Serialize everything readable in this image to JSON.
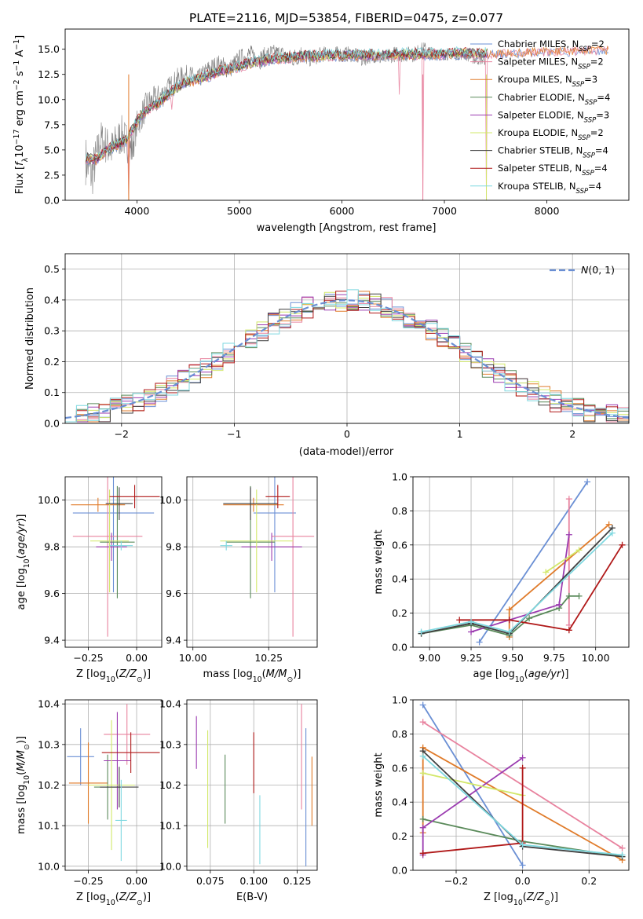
{
  "chart_data": [
    {
      "id": "spectrum",
      "type": "line",
      "title": "PLATE=2116, MJD=53854, FIBERID=0475, z=0.077",
      "xlabel": "wavelength [Angstrom, rest frame]",
      "ylabel": "Flux [f_λ 10^-17 erg cm^-2 s^-1 A^-1]",
      "xlim": [
        3300,
        8800
      ],
      "ylim": [
        0,
        17
      ],
      "xticks": [
        4000,
        5000,
        6000,
        7000,
        8000
      ],
      "yticks": [
        0.0,
        2.5,
        5.0,
        7.5,
        10.0,
        12.5,
        15.0
      ],
      "grid": false,
      "legend_position": "right",
      "data_color": "#808080",
      "data_x": [
        3500,
        3560,
        3650,
        3750,
        3850,
        3950,
        4000,
        4100,
        4200,
        4300,
        4400,
        4500,
        4600,
        4700,
        4800,
        4900,
        5000,
        5100,
        5200,
        5300,
        5400,
        5500,
        5600,
        5700,
        5800,
        5900,
        6000,
        6100,
        6200,
        6300,
        6400,
        6500,
        6600,
        6700,
        6800,
        6900,
        7000,
        7100,
        7200,
        7300,
        7400
      ],
      "data_y": [
        4.0,
        2.5,
        6.0,
        5.0,
        6.5,
        5.0,
        7.5,
        9.5,
        10.0,
        11.0,
        12.0,
        12.5,
        12.0,
        13.0,
        13.5,
        13.0,
        14.0,
        14.5,
        14.0,
        14.5,
        14.5,
        14.0,
        14.5,
        14.0,
        14.5,
        14.5,
        14.5,
        14.5,
        14.0,
        14.5,
        14.0,
        14.5,
        14.5,
        14.5,
        15.0,
        14.5,
        14.5,
        14.5,
        14.5,
        14.0,
        14.0
      ],
      "data_noise": [
        2.5,
        2.5,
        2.0,
        2.0,
        2.0,
        2.0,
        1.5,
        1.5,
        1.5,
        1.2,
        1.2,
        1.0,
        1.0,
        1.0,
        1.0,
        1.0,
        1.0,
        1.0,
        1.0,
        1.0,
        1.0,
        1.0,
        1.0,
        0.8,
        0.8,
        0.8,
        0.8,
        0.8,
        0.8,
        0.8,
        0.8,
        0.8,
        0.8,
        0.8,
        0.8,
        0.6,
        0.6,
        0.6,
        0.6,
        0.6,
        0.6
      ],
      "model_x": [
        3500,
        3600,
        3700,
        3800,
        3900,
        4000,
        4100,
        4200,
        4300,
        4400,
        4500,
        4600,
        4700,
        4800,
        4900,
        5000,
        5100,
        5200,
        5300,
        5400,
        5500,
        5600,
        5700,
        5800,
        5900,
        6000,
        6100,
        6200,
        6300,
        6400,
        6500,
        6600,
        6700,
        6800,
        6900,
        7000,
        7100,
        7200,
        7300,
        7400,
        7600,
        7800,
        8000,
        8200,
        8400,
        8600
      ],
      "model_y": [
        4.2,
        4.0,
        5.0,
        5.5,
        6.0,
        7.8,
        9.0,
        9.6,
        10.5,
        11.2,
        11.8,
        12.0,
        12.4,
        12.8,
        13.0,
        13.3,
        13.6,
        13.8,
        14.0,
        14.1,
        14.2,
        14.3,
        14.3,
        14.3,
        14.4,
        14.4,
        14.4,
        14.4,
        14.4,
        14.4,
        14.5,
        14.5,
        14.5,
        14.5,
        14.5,
        14.5,
        14.6,
        14.6,
        14.6,
        14.6,
        14.7,
        14.8,
        14.9,
        14.9,
        15.0,
        15.0
      ],
      "dips": [
        [
          3920,
          0.0
        ],
        [
          4340,
          9.0
        ],
        [
          6560,
          10.5
        ],
        [
          6790,
          0.0
        ],
        [
          7410,
          0.0
        ]
      ],
      "series": [
        {
          "name": "Chabrier MILES, N_SSP=2",
          "color": "#6a8fd4"
        },
        {
          "name": "Salpeter MILES, N_SSP=2",
          "color": "#e8829e"
        },
        {
          "name": "Kroupa MILES, N_SSP=3",
          "color": "#e07b2a"
        },
        {
          "name": "Chabrier ELODIE, N_SSP=4",
          "color": "#5a8a5a"
        },
        {
          "name": "Salpeter ELODIE, N_SSP=3",
          "color": "#9b3bb0"
        },
        {
          "name": "Kroupa ELODIE, N_SSP=2",
          "color": "#d2e86a"
        },
        {
          "name": "Chabrier STELIB, N_SSP=4",
          "color": "#404040"
        },
        {
          "name": "Salpeter STELIB, N_SSP=4",
          "color": "#b01818"
        },
        {
          "name": "Kroupa STELIB, N_SSP=4",
          "color": "#7fd8e0"
        }
      ]
    },
    {
      "id": "residuals",
      "type": "histogram",
      "xlabel": "(data-model)/error",
      "ylabel": "Normed distribution",
      "xlim": [
        -2.5,
        2.5
      ],
      "ylim": [
        0,
        0.55
      ],
      "xticks": [
        -2,
        -1,
        0,
        1,
        2
      ],
      "yticks": [
        0.0,
        0.1,
        0.2,
        0.3,
        0.4,
        0.5
      ],
      "grid": true,
      "legend_position": "upper right",
      "gaussian": {
        "name": "N(0,1)",
        "color": "#6a8fd4",
        "style": "dashed"
      },
      "bin_width": 0.1,
      "bin_start": -2.5
    },
    {
      "id": "age_vs_z",
      "type": "errorbar",
      "xlabel": "Z [log10(Z/Z_sun)]",
      "ylabel": "age [log10(age/yr)]",
      "xlim": [
        -0.37,
        0.13
      ],
      "ylim": [
        9.37,
        10.1
      ],
      "xticks": [
        -0.25,
        0.0
      ],
      "xticklabels": [
        "−0.25",
        "0.00"
      ],
      "yticks": [
        9.4,
        9.6,
        9.8,
        10.0
      ],
      "yticklabels": [
        "9.4",
        "9.6",
        "9.8",
        "10.0"
      ],
      "grid": true,
      "points": [
        {
          "color": "#6a8fd4",
          "x": -0.12,
          "xerr": 0.21,
          "y": 9.945,
          "yerr": 0.34
        },
        {
          "color": "#e8829e",
          "x": -0.15,
          "xerr": 0.18,
          "y": 9.845,
          "yerr": 0.43
        },
        {
          "color": "#e07b2a",
          "x": -0.2,
          "xerr": 0.14,
          "y": 9.98,
          "yerr": 0.03
        },
        {
          "color": "#5a8a5a",
          "x": -0.1,
          "xerr": 0.09,
          "y": 9.82,
          "yerr": 0.24
        },
        {
          "color": "#9b3bb0",
          "x": -0.13,
          "xerr": 0.08,
          "y": 9.8,
          "yerr": 0.06
        },
        {
          "color": "#d2e86a",
          "x": -0.14,
          "xerr": 0.1,
          "y": 9.825,
          "yerr": 0.22
        },
        {
          "color": "#404040",
          "x": -0.09,
          "xerr": 0.07,
          "y": 9.985,
          "yerr": 0.07
        },
        {
          "color": "#b01818",
          "x": -0.01,
          "xerr": 0.13,
          "y": 10.015,
          "yerr": 0.05
        },
        {
          "color": "#7fd8e0",
          "x": -0.08,
          "xerr": 0.06,
          "y": 9.805,
          "yerr": 0.02
        }
      ]
    },
    {
      "id": "age_vs_mass",
      "type": "errorbar",
      "xlabel": "mass [log10(M/M_sun)]",
      "ylabel": "",
      "xlim": [
        9.98,
        10.41
      ],
      "ylim": [
        9.37,
        10.1
      ],
      "xticks": [
        10.0,
        10.25
      ],
      "xticklabels": [
        "10.00",
        "10.25"
      ],
      "yticks": [
        9.4,
        9.6,
        9.8,
        10.0
      ],
      "yticklabels": [
        "9.4",
        "9.6",
        "9.8",
        "10.0"
      ],
      "grid": true,
      "points": [
        {
          "color": "#6a8fd4",
          "x": 10.27,
          "xerr": 0.07,
          "y": 9.945,
          "yerr": 0.34
        },
        {
          "color": "#e8829e",
          "x": 10.33,
          "xerr": 0.07,
          "y": 9.845,
          "yerr": 0.43
        },
        {
          "color": "#e07b2a",
          "x": 10.2,
          "xerr": 0.1,
          "y": 9.98,
          "yerr": 0.03
        },
        {
          "color": "#5a8a5a",
          "x": 10.19,
          "xerr": 0.08,
          "y": 9.82,
          "yerr": 0.24
        },
        {
          "color": "#9b3bb0",
          "x": 10.26,
          "xerr": 0.1,
          "y": 9.8,
          "yerr": 0.06
        },
        {
          "color": "#d2e86a",
          "x": 10.21,
          "xerr": 0.12,
          "y": 9.825,
          "yerr": 0.22
        },
        {
          "color": "#404040",
          "x": 10.19,
          "xerr": 0.09,
          "y": 9.985,
          "yerr": 0.07
        },
        {
          "color": "#b01818",
          "x": 10.28,
          "xerr": 0.04,
          "y": 10.015,
          "yerr": 0.05
        },
        {
          "color": "#7fd8e0",
          "x": 10.11,
          "xerr": 0.02,
          "y": 9.805,
          "yerr": 0.02
        }
      ]
    },
    {
      "id": "weight_vs_age",
      "type": "line",
      "xlabel": "age [log10(age/yr)]",
      "ylabel": "mass weight",
      "xlim": [
        8.9,
        10.2
      ],
      "ylim": [
        0,
        1
      ],
      "xticks": [
        9.0,
        9.25,
        9.5,
        9.75,
        10.0
      ],
      "xticklabels": [
        "9.00",
        "9.25",
        "9.50",
        "9.75",
        "10.00"
      ],
      "yticks": [
        0.0,
        0.2,
        0.4,
        0.6,
        0.8,
        1.0
      ],
      "yticklabels": [
        "0.0",
        "0.2",
        "0.4",
        "0.6",
        "0.8",
        "1.0"
      ],
      "grid": true,
      "series": [
        {
          "color": "#6a8fd4",
          "x": [
            9.3,
            9.95
          ],
          "y": [
            0.03,
            0.97
          ]
        },
        {
          "color": "#e8829e",
          "x": [
            9.84,
            9.84
          ],
          "y": [
            0.13,
            0.87
          ]
        },
        {
          "color": "#e07b2a",
          "x": [
            9.48,
            9.48,
            10.08
          ],
          "y": [
            0.06,
            0.22,
            0.72
          ]
        },
        {
          "color": "#5a8a5a",
          "x": [
            8.95,
            9.25,
            9.48,
            9.6,
            9.78,
            9.84,
            9.9
          ],
          "y": [
            0.08,
            0.13,
            0.07,
            0.17,
            0.23,
            0.3,
            0.3
          ]
        },
        {
          "color": "#9b3bb0",
          "x": [
            9.25,
            9.48,
            9.78,
            9.84
          ],
          "y": [
            0.09,
            0.16,
            0.25,
            0.66
          ]
        },
        {
          "color": "#d2e86a",
          "x": [
            9.7,
            9.9
          ],
          "y": [
            0.44,
            0.57
          ]
        },
        {
          "color": "#404040",
          "x": [
            8.95,
            9.25,
            9.48,
            10.1
          ],
          "y": [
            0.08,
            0.14,
            0.08,
            0.7
          ]
        },
        {
          "color": "#b01818",
          "x": [
            9.18,
            9.48,
            9.84,
            10.16
          ],
          "y": [
            0.16,
            0.16,
            0.1,
            0.6
          ]
        },
        {
          "color": "#7fd8e0",
          "x": [
            8.95,
            9.25,
            9.48,
            10.1
          ],
          "y": [
            0.09,
            0.15,
            0.09,
            0.67
          ]
        }
      ]
    },
    {
      "id": "mass_vs_z",
      "type": "errorbar",
      "xlabel": "Z [log10(Z/Z_sun)]",
      "ylabel": "mass [log10(M/M_sun)]",
      "xlim": [
        -0.37,
        0.13
      ],
      "ylim": [
        9.99,
        10.41
      ],
      "xticks": [
        -0.25,
        0.0
      ],
      "xticklabels": [
        "−0.25",
        "0.00"
      ],
      "yticks": [
        10.0,
        10.1,
        10.2,
        10.3,
        10.4
      ],
      "yticklabels": [
        "10.0",
        "10.1",
        "10.2",
        "10.3",
        "10.4"
      ],
      "grid": true,
      "points": [
        {
          "color": "#6a8fd4",
          "x": -0.29,
          "xerr": 0.07,
          "y": 10.27,
          "yerr": 0.07
        },
        {
          "color": "#e8829e",
          "x": -0.05,
          "xerr": 0.12,
          "y": 10.325,
          "yerr": 0.075
        },
        {
          "color": "#e07b2a",
          "x": -0.25,
          "xerr": 0.1,
          "y": 10.205,
          "yerr": 0.1
        },
        {
          "color": "#5a8a5a",
          "x": -0.15,
          "xerr": 0.07,
          "y": 10.195,
          "yerr": 0.08
        },
        {
          "color": "#9b3bb0",
          "x": -0.1,
          "xerr": 0.07,
          "y": 10.26,
          "yerr": 0.12
        },
        {
          "color": "#d2e86a",
          "x": -0.13,
          "xerr": 0.12,
          "y": 10.2,
          "yerr": 0.16
        },
        {
          "color": "#404040",
          "x": -0.09,
          "xerr": 0.1,
          "y": 10.195,
          "yerr": 0.05
        },
        {
          "color": "#b01818",
          "x": -0.03,
          "xerr": 0.15,
          "y": 10.28,
          "yerr": 0.05
        },
        {
          "color": "#7fd8e0",
          "x": -0.08,
          "xerr": 0.03,
          "y": 10.113,
          "yerr": 0.1
        }
      ]
    },
    {
      "id": "mass_vs_ebv",
      "type": "errorbar",
      "xlabel": "E(B-V)",
      "ylabel": "",
      "xlim": [
        0.0615,
        0.1365
      ],
      "ylim": [
        9.99,
        10.41
      ],
      "xticks": [
        0.075,
        0.1,
        0.125
      ],
      "xticklabels": [
        "0.075",
        "0.100",
        "0.125"
      ],
      "yticks": [
        10.0,
        10.1,
        10.2,
        10.3,
        10.4
      ],
      "yticklabels": [
        "10.0",
        "10.1",
        "10.2",
        "10.3",
        "10.4"
      ],
      "grid": true,
      "points": [
        {
          "color": "#6a8fd4",
          "x": 0.13,
          "y": 10.17,
          "yerr": 0.17
        },
        {
          "color": "#e8829e",
          "x": 0.1275,
          "y": 10.27,
          "yerr": 0.13
        },
        {
          "color": "#e07b2a",
          "x": 0.1335,
          "y": 10.185,
          "yerr": 0.085
        },
        {
          "color": "#5a8a5a",
          "x": 0.0835,
          "y": 10.19,
          "yerr": 0.085
        },
        {
          "color": "#9b3bb0",
          "x": 0.067,
          "y": 10.305,
          "yerr": 0.065
        },
        {
          "color": "#d2e86a",
          "x": 0.0735,
          "y": 10.19,
          "yerr": 0.145
        },
        {
          "color": "#b01818",
          "x": 0.1,
          "y": 10.255,
          "yerr": 0.075
        },
        {
          "color": "#7fd8e0",
          "x": 0.1035,
          "y": 10.09,
          "yerr": 0.085
        }
      ]
    },
    {
      "id": "weight_vs_z",
      "type": "line",
      "xlabel": "Z [log10(Z/Z_sun)]",
      "ylabel": "mass weight",
      "xlim": [
        -0.33,
        0.32
      ],
      "ylim": [
        0,
        1
      ],
      "xticks": [
        -0.2,
        0.0,
        0.2
      ],
      "xticklabels": [
        "−0.2",
        "0.0",
        "0.2"
      ],
      "yticks": [
        0.0,
        0.2,
        0.4,
        0.6,
        0.8,
        1.0
      ],
      "yticklabels": [
        "0.0",
        "0.2",
        "0.4",
        "0.6",
        "0.8",
        "1.0"
      ],
      "grid": true,
      "series": [
        {
          "color": "#6a8fd4",
          "x": [
            -0.3,
            0.0
          ],
          "y": [
            0.97,
            0.03
          ]
        },
        {
          "color": "#e8829e",
          "x": [
            -0.3,
            0.3
          ],
          "y": [
            0.87,
            0.13
          ]
        },
        {
          "color": "#e07b2a",
          "x": [
            -0.3,
            -0.3,
            0.3
          ],
          "y": [
            0.22,
            0.72,
            0.06
          ]
        },
        {
          "color": "#5a8a5a",
          "x": [
            -0.3,
            0.0,
            0.3
          ],
          "y": [
            0.3,
            0.17,
            0.08
          ]
        },
        {
          "color": "#9b3bb0",
          "x": [
            -0.3,
            -0.3,
            0.0
          ],
          "y": [
            0.09,
            0.25,
            0.66
          ]
        },
        {
          "color": "#d2e86a",
          "x": [
            -0.3,
            0.0
          ],
          "y": [
            0.57,
            0.44
          ]
        },
        {
          "color": "#404040",
          "x": [
            -0.3,
            0.0,
            0.3
          ],
          "y": [
            0.7,
            0.14,
            0.08
          ]
        },
        {
          "color": "#b01818",
          "x": [
            -0.3,
            0.0,
            0.0
          ],
          "y": [
            0.1,
            0.16,
            0.6
          ]
        },
        {
          "color": "#7fd8e0",
          "x": [
            -0.3,
            0.0,
            0.3
          ],
          "y": [
            0.67,
            0.15,
            0.09
          ]
        }
      ]
    }
  ]
}
